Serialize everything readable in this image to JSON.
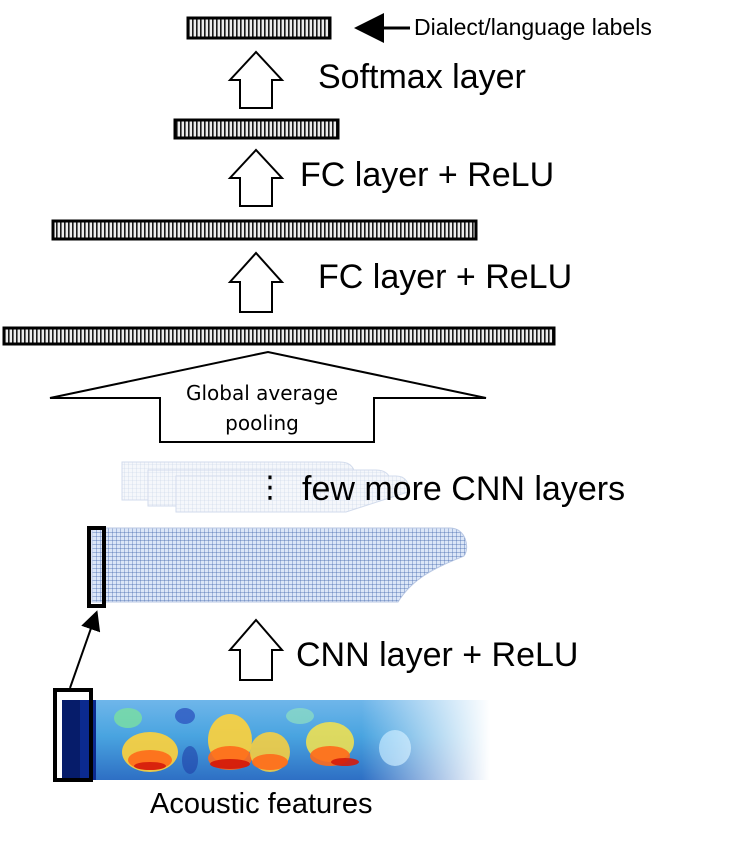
{
  "labels": {
    "output_labels": "Dialect/language labels",
    "softmax": "Softmax layer",
    "fc_top": "FC layer + ReLU",
    "fc_bottom": "FC layer + ReLU",
    "global_pooling_line1": "Global average",
    "global_pooling_line2": "pooling",
    "more_cnn": "few more CNN layers",
    "more_cnn_dots": "⋮",
    "cnn_relu": "CNN layer + ReLU",
    "acoustic": "Acoustic features"
  },
  "colors": {
    "stroke": "#000000",
    "cnn_grid": "#3a5fa8",
    "cnn_fill": "#dbe6f7",
    "faded_grid": "#9fb3d6",
    "bar_fill": "#e6e6e6"
  }
}
